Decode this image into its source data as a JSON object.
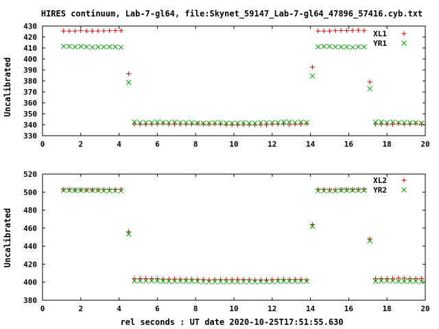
{
  "title": "HIRES continuum, Lab-7-gl64, file:Skynet_59147_Lab-7-gl64_47896_57416.cyb.txt",
  "xlabel": "rel seconds : UT date 2020-10-25T17:51:55.630",
  "colors": {
    "series_a": "#cc0000",
    "series_b": "#00a000",
    "axis": "#000000"
  },
  "chart_data": [
    {
      "type": "scatter",
      "ylabel": "Uncalibrated",
      "xlim": [
        0,
        20
      ],
      "ylim": [
        330,
        430
      ],
      "xticks": [
        "0",
        "2",
        "4",
        "6",
        "8",
        "10",
        "12",
        "14",
        "16",
        "18",
        "20"
      ],
      "yticks": [
        "330",
        "340",
        "350",
        "360",
        "370",
        "380",
        "390",
        "400",
        "410",
        "420",
        "430"
      ],
      "grid": false,
      "legend_position": "top-right",
      "series": [
        {
          "name": "XL1",
          "marker": "plus",
          "color": "#cc0000",
          "x": [
            1.1,
            1.4,
            1.7,
            2.0,
            2.3,
            2.6,
            2.9,
            3.2,
            3.5,
            3.8,
            4.1,
            4.5,
            4.8,
            5.1,
            5.4,
            5.7,
            6.0,
            6.3,
            6.6,
            6.9,
            7.2,
            7.5,
            7.8,
            8.1,
            8.4,
            8.7,
            9.0,
            9.3,
            9.6,
            9.9,
            10.2,
            10.5,
            10.8,
            11.1,
            11.4,
            11.7,
            12.0,
            12.3,
            12.6,
            12.9,
            13.2,
            13.5,
            13.8,
            14.1,
            14.4,
            14.7,
            15.0,
            15.3,
            15.6,
            15.9,
            16.2,
            16.5,
            16.8,
            17.1,
            17.4,
            17.7,
            18.0,
            18.3,
            18.6,
            18.9,
            19.2,
            19.5,
            19.8
          ],
          "y": [
            425.5,
            425.5,
            425.5,
            425.8,
            425.5,
            425.5,
            425.5,
            425.6,
            425.8,
            425.8,
            425.8,
            386.5,
            340.5,
            340.5,
            340.5,
            340.5,
            340.5,
            341.0,
            340.5,
            340.5,
            340.5,
            340.5,
            340.5,
            341.0,
            340.5,
            340.5,
            340.5,
            340.5,
            340.0,
            340.0,
            340.0,
            340.0,
            340.0,
            340.0,
            340.0,
            340.0,
            340.5,
            340.5,
            340.5,
            340.0,
            340.5,
            340.5,
            341.0,
            392.5,
            425.5,
            425.5,
            425.5,
            425.8,
            426.0,
            425.8,
            426.0,
            426.2,
            425.8,
            379.0,
            340.5,
            340.5,
            340.5,
            340.5,
            341.0,
            340.5,
            340.5,
            341.0,
            340.5
          ]
        },
        {
          "name": "YR1",
          "marker": "cross",
          "color": "#00a000",
          "x": [
            1.1,
            1.4,
            1.7,
            2.0,
            2.3,
            2.6,
            2.9,
            3.2,
            3.5,
            3.8,
            4.1,
            4.5,
            4.8,
            5.1,
            5.4,
            5.7,
            6.0,
            6.3,
            6.6,
            6.9,
            7.2,
            7.5,
            7.8,
            8.1,
            8.4,
            8.7,
            9.0,
            9.3,
            9.6,
            9.9,
            10.2,
            10.5,
            10.8,
            11.1,
            11.4,
            11.7,
            12.0,
            12.3,
            12.6,
            12.9,
            13.2,
            13.5,
            13.8,
            14.1,
            14.4,
            14.7,
            15.0,
            15.3,
            15.6,
            15.9,
            16.2,
            16.5,
            16.8,
            17.1,
            17.4,
            17.7,
            18.0,
            18.3,
            18.6,
            18.9,
            19.2,
            19.5,
            19.8
          ],
          "y": [
            411.5,
            411.5,
            411.0,
            411.5,
            411.0,
            410.5,
            411.0,
            411.0,
            411.0,
            411.0,
            410.5,
            378.5,
            342.5,
            342.0,
            342.0,
            342.0,
            342.5,
            342.0,
            342.0,
            342.5,
            342.0,
            342.0,
            342.0,
            341.5,
            341.5,
            341.5,
            342.0,
            342.0,
            341.5,
            341.5,
            341.5,
            342.0,
            341.5,
            341.5,
            342.0,
            342.0,
            342.0,
            342.0,
            342.5,
            342.5,
            342.0,
            342.5,
            342.0,
            384.5,
            411.0,
            411.5,
            411.5,
            411.0,
            411.0,
            411.0,
            410.5,
            411.0,
            411.0,
            373.0,
            342.5,
            342.5,
            342.0,
            342.5,
            342.0,
            342.0,
            342.0,
            342.0,
            341.5
          ]
        }
      ]
    },
    {
      "type": "scatter",
      "ylabel": "Uncalibrated",
      "xlim": [
        0,
        20
      ],
      "ylim": [
        380,
        520
      ],
      "xticks": [
        "0",
        "2",
        "4",
        "6",
        "8",
        "10",
        "12",
        "14",
        "16",
        "18",
        "20"
      ],
      "yticks": [
        "380",
        "400",
        "420",
        "440",
        "460",
        "480",
        "500",
        "520"
      ],
      "grid": false,
      "legend_position": "top-right",
      "series": [
        {
          "name": "XL2",
          "marker": "plus",
          "color": "#cc0000",
          "x": [
            1.1,
            1.4,
            1.7,
            2.0,
            2.3,
            2.6,
            2.9,
            3.2,
            3.5,
            3.8,
            4.1,
            4.5,
            4.8,
            5.1,
            5.4,
            5.7,
            6.0,
            6.3,
            6.6,
            6.9,
            7.2,
            7.5,
            7.8,
            8.1,
            8.4,
            8.7,
            9.0,
            9.3,
            9.6,
            9.9,
            10.2,
            10.5,
            10.8,
            11.1,
            11.4,
            11.7,
            12.0,
            12.3,
            12.6,
            12.9,
            13.2,
            13.5,
            13.8,
            14.1,
            14.4,
            14.7,
            15.0,
            15.3,
            15.6,
            15.9,
            16.2,
            16.5,
            16.8,
            17.1,
            17.4,
            17.7,
            18.0,
            18.3,
            18.6,
            18.9,
            19.2,
            19.5,
            19.8
          ],
          "y": [
            503.0,
            503.0,
            502.5,
            502.5,
            502.5,
            502.5,
            502.5,
            503.0,
            503.0,
            503.0,
            503.0,
            456.0,
            404.0,
            404.0,
            404.0,
            404.0,
            404.0,
            403.5,
            403.5,
            403.5,
            403.5,
            403.5,
            403.5,
            403.0,
            403.0,
            402.5,
            403.0,
            403.0,
            403.0,
            403.0,
            403.0,
            403.0,
            403.0,
            402.5,
            402.5,
            402.5,
            403.0,
            403.0,
            403.0,
            403.0,
            403.0,
            403.0,
            402.5,
            464.0,
            503.0,
            503.0,
            502.5,
            502.5,
            503.0,
            503.0,
            503.0,
            503.0,
            503.0,
            448.0,
            404.0,
            404.0,
            404.0,
            404.0,
            404.5,
            404.5,
            404.0,
            404.0,
            404.0
          ]
        },
        {
          "name": "YR2",
          "marker": "cross",
          "color": "#00a000",
          "x": [
            1.1,
            1.4,
            1.7,
            2.0,
            2.3,
            2.6,
            2.9,
            3.2,
            3.5,
            3.8,
            4.1,
            4.5,
            4.8,
            5.1,
            5.4,
            5.7,
            6.0,
            6.3,
            6.6,
            6.9,
            7.2,
            7.5,
            7.8,
            8.1,
            8.4,
            8.7,
            9.0,
            9.3,
            9.6,
            9.9,
            10.2,
            10.5,
            10.8,
            11.1,
            11.4,
            11.7,
            12.0,
            12.3,
            12.6,
            12.9,
            13.2,
            13.5,
            13.8,
            14.1,
            14.4,
            14.7,
            15.0,
            15.3,
            15.6,
            15.9,
            16.2,
            16.5,
            16.8,
            17.1,
            17.4,
            17.7,
            18.0,
            18.3,
            18.6,
            18.9,
            19.2,
            19.5,
            19.8
          ],
          "y": [
            502.0,
            502.0,
            502.0,
            502.0,
            502.0,
            502.0,
            502.0,
            501.5,
            501.5,
            501.5,
            501.5,
            453.5,
            401.5,
            401.5,
            401.5,
            401.5,
            401.5,
            401.0,
            401.0,
            401.0,
            401.0,
            401.0,
            401.0,
            401.0,
            400.5,
            400.5,
            400.5,
            400.5,
            400.5,
            400.5,
            400.5,
            400.5,
            400.5,
            400.5,
            400.5,
            400.5,
            400.5,
            401.0,
            401.0,
            401.0,
            401.0,
            401.0,
            401.0,
            462.0,
            501.5,
            501.5,
            501.5,
            501.5,
            502.0,
            502.0,
            502.0,
            502.0,
            502.0,
            446.0,
            401.0,
            401.5,
            401.5,
            401.5,
            401.0,
            401.0,
            401.0,
            401.0,
            400.5
          ]
        }
      ]
    }
  ]
}
